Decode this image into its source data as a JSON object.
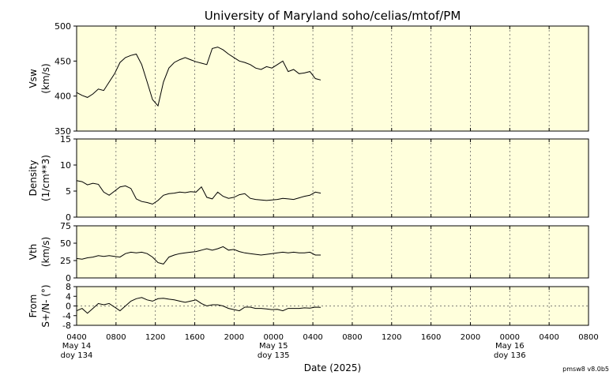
{
  "title": "University of Maryland  soho/celias/mtof/PM",
  "xlabel": "Date (2025)",
  "version": "pmsw8 v8.0b5",
  "colors": {
    "plot_bg": "#ffffdc",
    "line": "#000000",
    "grid": "#555555"
  },
  "chart_data": [
    {
      "type": "line",
      "ylabel": [
        "Vsw",
        "(km/s)"
      ],
      "ylim": [
        350,
        500
      ],
      "yticks": [
        "350",
        "400",
        "450",
        "500"
      ],
      "grid": "vertical dotted",
      "series": [
        {
          "values": [
            405,
            401,
            398,
            403,
            410,
            408,
            420,
            432,
            448,
            455,
            458,
            460,
            445,
            420,
            395,
            386,
            420,
            440,
            448,
            452,
            455,
            452,
            449,
            447,
            445,
            468,
            470,
            466,
            460,
            455,
            450,
            448,
            445,
            440,
            438,
            442,
            440,
            445,
            450,
            435,
            438,
            432,
            433,
            435,
            425,
            423
          ]
        }
      ]
    },
    {
      "type": "line",
      "ylabel": [
        "Density",
        "(1/cm**3)"
      ],
      "ylim": [
        0,
        15
      ],
      "yticks": [
        "0",
        "5",
        "10",
        "15"
      ],
      "grid": "vertical dotted",
      "series": [
        {
          "values": [
            7,
            6.8,
            6.2,
            6.5,
            6.3,
            4.8,
            4.2,
            5,
            5.8,
            6,
            5.5,
            3.5,
            3,
            2.8,
            2.5,
            3.2,
            4.2,
            4.5,
            4.6,
            4.8,
            4.7,
            4.9,
            4.8,
            5.8,
            3.8,
            3.5,
            4.8,
            4,
            3.6,
            3.8,
            4.3,
            4.5,
            3.6,
            3.4,
            3.3,
            3.2,
            3.3,
            3.4,
            3.6,
            3.5,
            3.4,
            3.7,
            4,
            4.2,
            4.8,
            4.6
          ]
        }
      ]
    },
    {
      "type": "line",
      "ylabel": [
        "Vth",
        "(km/s)"
      ],
      "ylim": [
        0,
        75
      ],
      "yticks": [
        "0",
        "25",
        "50",
        "75"
      ],
      "grid": "vertical dotted",
      "series": [
        {
          "values": [
            28,
            27,
            29,
            30,
            32,
            31,
            32,
            31,
            30,
            35,
            37,
            36,
            37,
            35,
            30,
            22,
            20,
            30,
            33,
            35,
            36,
            37,
            38,
            40,
            42,
            40,
            42,
            45,
            40,
            41,
            38,
            36,
            35,
            34,
            33,
            34,
            35,
            36,
            37,
            36,
            37,
            36,
            36,
            37,
            33,
            33
          ]
        }
      ]
    },
    {
      "type": "line",
      "ylabel": [
        "From",
        "S+/N- (°)"
      ],
      "ylim": [
        -8,
        8
      ],
      "yticks": [
        "-8",
        "-4",
        "0",
        "4",
        "8"
      ],
      "grid": "vertical dotted, dotted zero line",
      "series": [
        {
          "values": [
            -2,
            -1,
            -3,
            -1,
            1,
            0.5,
            1,
            -0.5,
            -2,
            0,
            2,
            3,
            3.5,
            2.5,
            2,
            3,
            3.2,
            2.8,
            2.5,
            2,
            1.5,
            2,
            2.5,
            1,
            0,
            0.5,
            0.5,
            0,
            -1,
            -1.5,
            -2,
            -0.5,
            -0.5,
            -1,
            -1,
            -1.2,
            -1.5,
            -1.4,
            -2,
            -1,
            -1,
            -1,
            -0.8,
            -0.9,
            -0.5,
            -0.6
          ]
        }
      ]
    }
  ],
  "x_axis": {
    "range_hours_from_start": [
      0,
      52
    ],
    "data_start_hour": 0,
    "data_end_hour": 24.8,
    "tick_labels": [
      "0400",
      "0800",
      "1200",
      "1600",
      "2000",
      "0000",
      "0400",
      "0800",
      "1200",
      "1600",
      "2000",
      "0000",
      "0400",
      "0800"
    ],
    "day_labels": [
      {
        "tick_index": 0,
        "date": "May 14",
        "doy": "doy 134"
      },
      {
        "tick_index": 5,
        "date": "May 15",
        "doy": "doy 135"
      },
      {
        "tick_index": 11,
        "date": "May 16",
        "doy": "doy 136"
      }
    ]
  }
}
